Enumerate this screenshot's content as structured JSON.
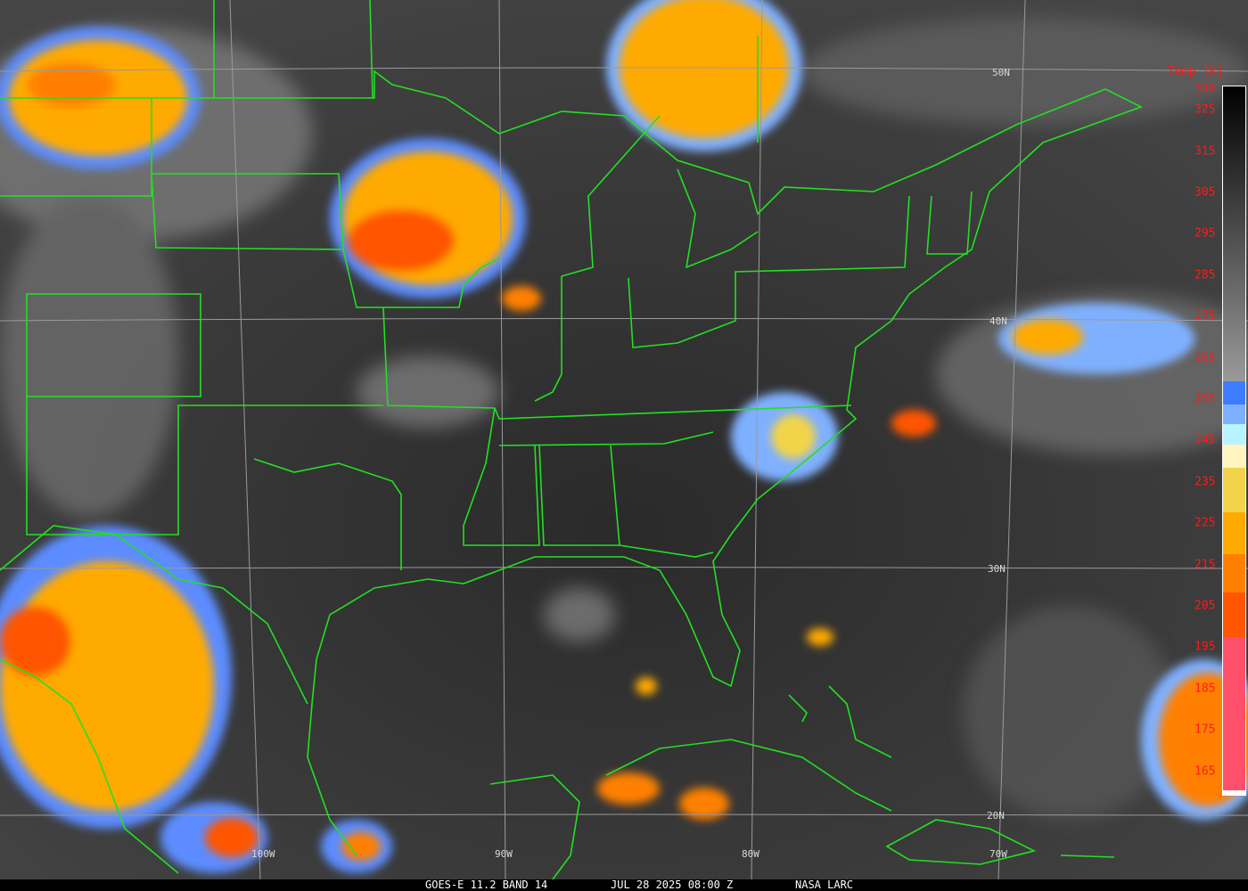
{
  "caption": {
    "satellite": "GOES-E 11.2 BAND 14",
    "datetime": "JUL 28 2025 08:00 Z",
    "source": "NASA LARC"
  },
  "colorbar": {
    "title": "Temp [K]",
    "labels": [
      330,
      325,
      315,
      305,
      295,
      285,
      275,
      265,
      255,
      245,
      235,
      225,
      215,
      205,
      195,
      185,
      175,
      165
    ],
    "range_k": [
      330,
      162
    ],
    "segments": [
      {
        "from": 330,
        "to": 260,
        "color": "gradient black-gray"
      },
      {
        "from": 260,
        "to": 254.5,
        "color": "#3d7bff"
      },
      {
        "from": 254.5,
        "to": 250,
        "color": "#7fb0ff"
      },
      {
        "from": 250,
        "to": 245,
        "color": "#b8f4ff"
      },
      {
        "from": 245,
        "to": 239.5,
        "color": "#fff5c0"
      },
      {
        "from": 239.5,
        "to": 229,
        "color": "#f2d44a"
      },
      {
        "from": 229,
        "to": 219,
        "color": "#ffaa00"
      },
      {
        "from": 219,
        "to": 210,
        "color": "#ff8000"
      },
      {
        "from": 210,
        "to": 199.5,
        "color": "#ff5500"
      },
      {
        "from": 199.5,
        "to": 163,
        "color": "#ff4f6a"
      },
      {
        "from": 163,
        "to": 162,
        "color": "#ffffff"
      }
    ]
  },
  "grid": {
    "latitudes": [
      "50N",
      "40N",
      "30N",
      "20N"
    ],
    "longitudes": [
      "100W",
      "90W",
      "80W",
      "70W"
    ]
  },
  "colors": {
    "borders": "#22e022",
    "grid": "#9a9a9a",
    "labels": "#ff1a1a"
  }
}
